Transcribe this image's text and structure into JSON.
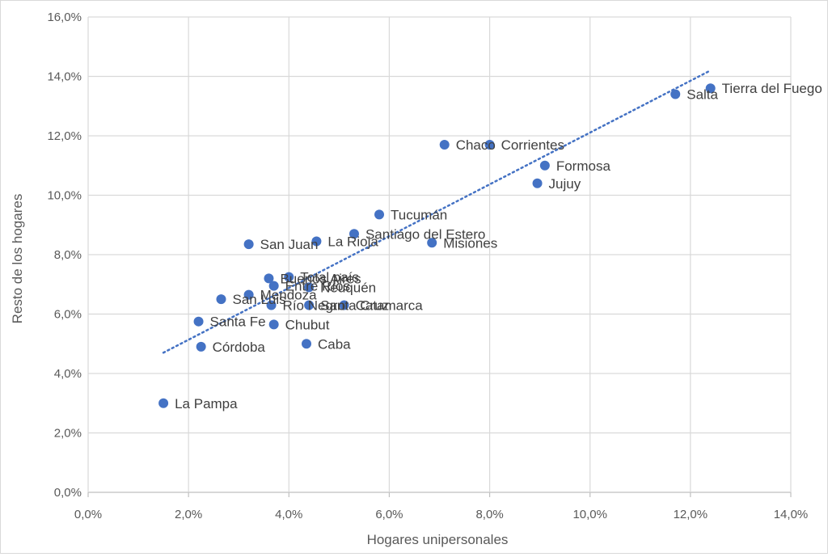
{
  "chart_data": {
    "type": "scatter",
    "xlabel": "Hogares unipersonales",
    "ylabel": "Resto de los hogares",
    "xlim": [
      0,
      14
    ],
    "ylim": [
      0,
      16
    ],
    "x_ticks": [
      "0,0%",
      "2,0%",
      "4,0%",
      "6,0%",
      "8,0%",
      "10,0%",
      "12,0%",
      "14,0%"
    ],
    "y_ticks": [
      "0,0%",
      "2,0%",
      "4,0%",
      "6,0%",
      "8,0%",
      "10,0%",
      "12,0%",
      "14,0%",
      "16,0%"
    ],
    "grid": true,
    "legend": "none",
    "trendline": {
      "style": "dotted",
      "from": [
        1.5,
        4.7
      ],
      "to": [
        12.4,
        14.2
      ]
    },
    "colors": {
      "point": "#4472c4",
      "trendline": "#4472c4",
      "grid": "#d9d9d9",
      "axis": "#bfbfbf"
    },
    "points": [
      {
        "label": "Tierra del Fuego",
        "x": 12.4,
        "y": 13.6
      },
      {
        "label": "Salta",
        "x": 11.7,
        "y": 13.4
      },
      {
        "label": "Chaco",
        "x": 7.1,
        "y": 11.7
      },
      {
        "label": "Corrientes",
        "x": 8.0,
        "y": 11.7
      },
      {
        "label": "Formosa",
        "x": 9.1,
        "y": 11.0
      },
      {
        "label": "Jujuy",
        "x": 8.95,
        "y": 10.4
      },
      {
        "label": "Tucumán",
        "x": 5.8,
        "y": 9.35
      },
      {
        "label": "Santiago del Estero",
        "x": 5.3,
        "y": 8.7
      },
      {
        "label": "La Rioja",
        "x": 4.55,
        "y": 8.45
      },
      {
        "label": "Misiones",
        "x": 6.85,
        "y": 8.4
      },
      {
        "label": "San Juan",
        "x": 3.2,
        "y": 8.35
      },
      {
        "label": "Buenos Aires",
        "x": 3.6,
        "y": 7.2
      },
      {
        "label": "Total país",
        "x": 4.0,
        "y": 7.25
      },
      {
        "label": "Entre Ríos",
        "x": 3.7,
        "y": 6.95
      },
      {
        "label": "Neuquén",
        "x": 4.4,
        "y": 6.9
      },
      {
        "label": "Mendoza",
        "x": 3.2,
        "y": 6.65
      },
      {
        "label": "San Luis",
        "x": 2.65,
        "y": 6.5
      },
      {
        "label": "Río Negro",
        "x": 3.65,
        "y": 6.3
      },
      {
        "label": "Santa Cruz",
        "x": 4.4,
        "y": 6.3
      },
      {
        "label": "Catamarca",
        "x": 5.1,
        "y": 6.3
      },
      {
        "label": "Santa Fe",
        "x": 2.2,
        "y": 5.75
      },
      {
        "label": "Chubut",
        "x": 3.7,
        "y": 5.65
      },
      {
        "label": "Córdoba",
        "x": 2.25,
        "y": 4.9
      },
      {
        "label": "Caba",
        "x": 4.35,
        "y": 5.0
      },
      {
        "label": "La Pampa",
        "x": 1.5,
        "y": 3.0
      }
    ]
  }
}
